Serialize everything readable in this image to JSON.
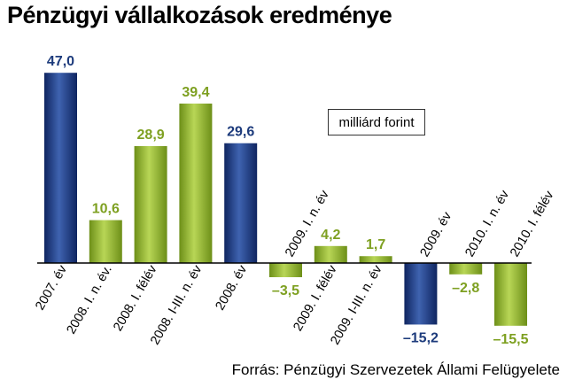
{
  "title": "Pénzügyi vállalkozások eredménye",
  "unit_label": "milliárd forint",
  "source": "Forrás: Pénzügyi Szervezetek Állami Felügyelete",
  "colors": {
    "annual": "#1d3b7c",
    "partial": "#8fb22a",
    "annual_label": "#1d3b7c",
    "partial_label": "#7ea021"
  },
  "chart_data": {
    "type": "bar",
    "title": "Pénzügyi vállalkozások eredménye",
    "ylabel": "milliárd forint",
    "grid": false,
    "categories": [
      "2007. év",
      "2008. I. n. év.",
      "2008. I. félév",
      "2008. I-III. n. év",
      "2008. év",
      "2009. I. n. év",
      "2009. I. félév",
      "2009. I-III. n. év",
      "2009. év",
      "2010. I. n. év",
      "2010. I. félév"
    ],
    "values": [
      47.0,
      10.6,
      28.9,
      39.4,
      29.6,
      -3.5,
      4.2,
      1.7,
      -15.2,
      -2.8,
      -15.5
    ],
    "value_labels": [
      "47,0",
      "10,6",
      "28,9",
      "39,4",
      "29,6",
      "–3,5",
      "4,2",
      "1,7",
      "–15,2",
      "–2,8",
      "–15,5"
    ],
    "bar_kind": [
      "annual",
      "partial",
      "partial",
      "partial",
      "annual",
      "partial",
      "partial",
      "partial",
      "annual",
      "partial",
      "partial"
    ]
  }
}
